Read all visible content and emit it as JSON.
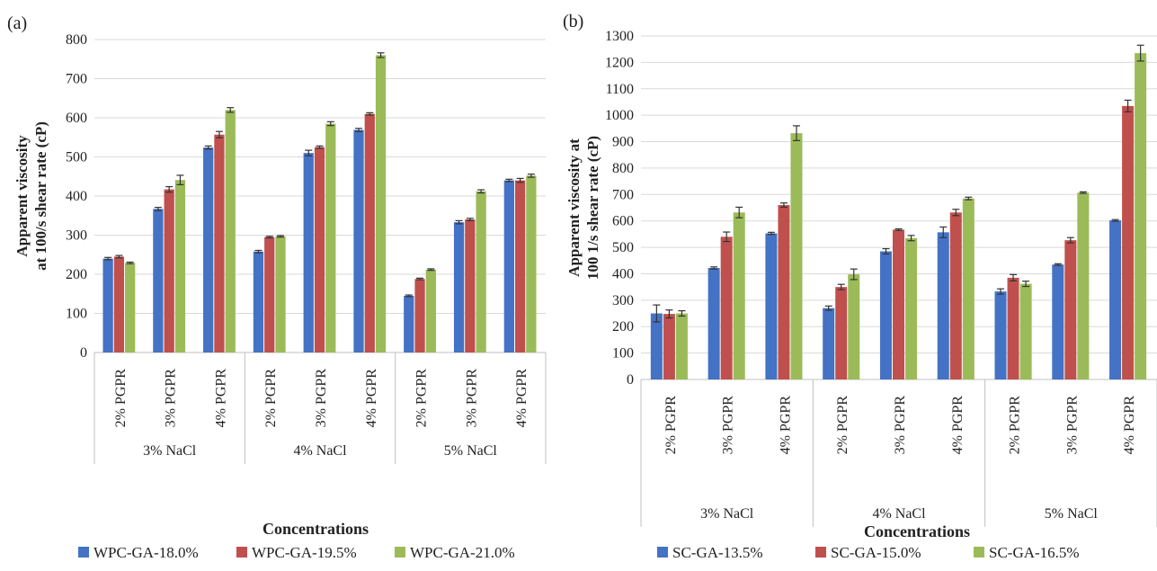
{
  "chart_data": [
    {
      "type": "bar",
      "panel_label": "(a)",
      "ylabel": [
        "Apparent viscosity",
        "at 100/s shear rate (cP)"
      ],
      "xlabel": "Concentrations",
      "ylim": [
        0,
        800
      ],
      "ytick_step": 100,
      "groups": [
        "3% NaCl",
        "4% NaCl",
        "5% NaCl"
      ],
      "categories": [
        "2% PGPR",
        "3% PGPR",
        "4% PGPR",
        "2% PGPR",
        "3% PGPR",
        "4% PGPR",
        "2% PGPR",
        "3% PGPR",
        "4% PGPR"
      ],
      "series": [
        {
          "name": "WPC-GA-18.0%",
          "color": "#4472C4",
          "values": [
            240,
            367,
            524,
            258,
            510,
            569,
            145,
            333,
            440
          ],
          "errors": [
            3,
            4,
            4,
            3,
            7,
            4,
            2,
            4,
            3
          ]
        },
        {
          "name": "WPC-GA-19.5%",
          "color": "#C0504D",
          "values": [
            245,
            417,
            557,
            295,
            525,
            610,
            188,
            340,
            440
          ],
          "errors": [
            3,
            7,
            8,
            2,
            3,
            3,
            2,
            3,
            5
          ]
        },
        {
          "name": "WPC-GA-21.0%",
          "color": "#9BBB59",
          "values": [
            229,
            441,
            620,
            297,
            585,
            760,
            212,
            412,
            452
          ],
          "errors": [
            2,
            12,
            6,
            2,
            5,
            6,
            2,
            4,
            4
          ]
        }
      ],
      "grid": true,
      "legend_position": "bottom"
    },
    {
      "type": "bar",
      "panel_label": "(b)",
      "ylabel": [
        "Apparent viscosity at",
        "100 1/s shear rate (cP)"
      ],
      "xlabel": "Concentrations",
      "ylim": [
        0,
        1300
      ],
      "ytick_step": 100,
      "groups": [
        "3% NaCl",
        "4% NaCl",
        "5% NaCl"
      ],
      "categories": [
        "2% PGPR",
        "3% PGPR",
        "4% PGPR",
        "2% PGPR",
        "3% PGPR",
        "4% PGPR",
        "2% PGPR",
        "3% PGPR",
        "4% PGPR"
      ],
      "series": [
        {
          "name": "SC-GA-13.5%",
          "color": "#4472C4",
          "values": [
            250,
            422,
            553,
            270,
            485,
            557,
            333,
            435,
            602
          ],
          "errors": [
            32,
            4,
            4,
            8,
            10,
            20,
            10,
            3,
            3
          ]
        },
        {
          "name": "SC-GA-15.0%",
          "color": "#C0504D",
          "values": [
            248,
            540,
            660,
            350,
            567,
            632,
            385,
            527,
            1035
          ],
          "errors": [
            15,
            18,
            8,
            10,
            3,
            12,
            12,
            10,
            22
          ]
        },
        {
          "name": "SC-GA-16.5%",
          "color": "#9BBB59",
          "values": [
            250,
            632,
            932,
            398,
            535,
            685,
            362,
            707,
            1235
          ],
          "errors": [
            10,
            20,
            28,
            20,
            10,
            5,
            10,
            3,
            30
          ]
        }
      ],
      "grid": true,
      "legend_position": "bottom"
    }
  ]
}
